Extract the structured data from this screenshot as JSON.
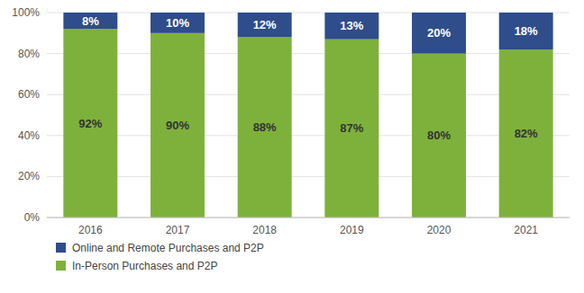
{
  "chart_data": {
    "type": "bar",
    "stacked": true,
    "categories": [
      "2016",
      "2017",
      "2018",
      "2019",
      "2020",
      "2021"
    ],
    "series": [
      {
        "name": "In-Person Purchases and P2P",
        "color": "#7EB13B",
        "values": [
          92,
          90,
          88,
          87,
          80,
          82
        ],
        "value_labels": [
          "92%",
          "90%",
          "88%",
          "87%",
          "80%",
          "82%"
        ]
      },
      {
        "name": "Online and Remote Purchases and P2P",
        "color": "#2E4D8A",
        "values": [
          8,
          10,
          12,
          13,
          20,
          18
        ],
        "value_labels": [
          "8%",
          "10%",
          "12%",
          "13%",
          "20%",
          "18%"
        ]
      }
    ],
    "ylim": [
      0,
      100
    ],
    "yticks": [
      {
        "value": 0,
        "label": "0%"
      },
      {
        "value": 20,
        "label": "20%"
      },
      {
        "value": 40,
        "label": "40%"
      },
      {
        "value": 60,
        "label": "60%"
      },
      {
        "value": 80,
        "label": "80%"
      },
      {
        "value": 100,
        "label": "100%"
      }
    ],
    "grid": true,
    "data_labels": true,
    "legend": "bottom"
  }
}
